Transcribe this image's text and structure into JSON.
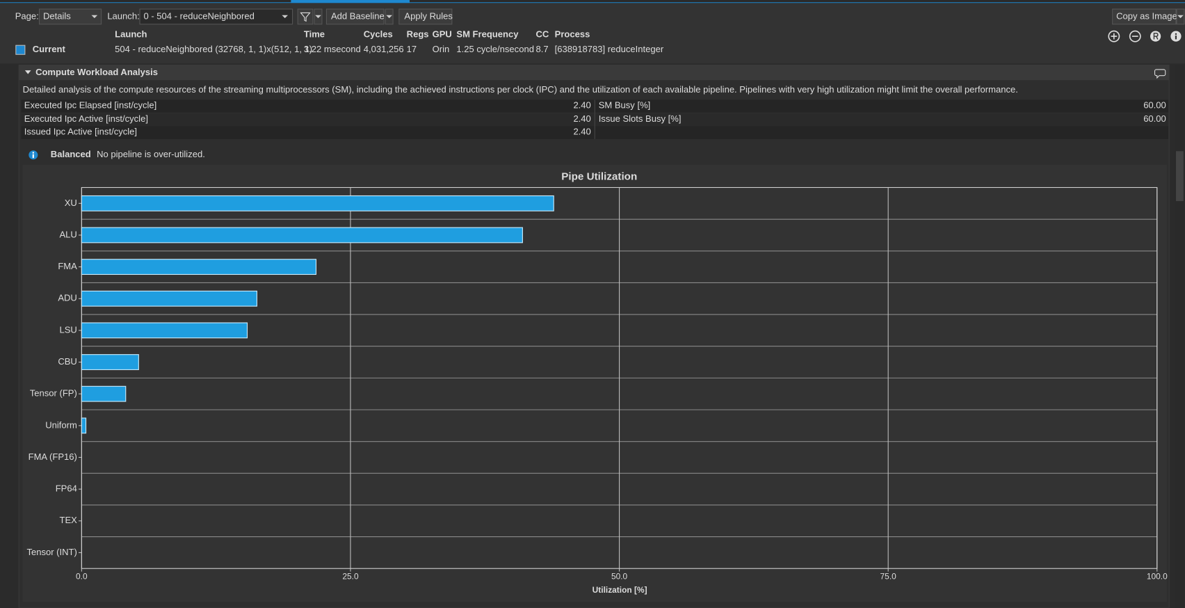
{
  "toolbar": {
    "page_label": "Page:",
    "page_value": "Details",
    "launch_label": "Launch:",
    "launch_value": "0 -  504 - reduceNeighbored",
    "add_baseline": "Add Baseline",
    "apply_rules": "Apply Rules",
    "copy_as_image": "Copy as Image"
  },
  "summary": {
    "headers": [
      "Launch",
      "Time",
      "Cycles",
      "Regs",
      "GPU",
      "SM Frequency",
      "CC",
      "Process"
    ],
    "row_label": "Current",
    "row": [
      "504 - reduceNeighbored (32768, 1, 1)x(512, 1, 1)",
      "3.22 msecond",
      "4,031,256",
      "17",
      "Orin",
      "1.25 cycle/nsecond",
      "8.7",
      "[638918783] reduceInteger"
    ]
  },
  "section": {
    "title": "Compute Workload Analysis",
    "description": "Detailed analysis of the compute resources of the streaming multiprocessors (SM), including the achieved instructions per clock (IPC) and the utilization of each available pipeline. Pipelines with very high utilization might limit the overall performance.",
    "metrics_left": [
      {
        "name": "Executed Ipc Elapsed [inst/cycle]",
        "value": "2.40"
      },
      {
        "name": "Executed Ipc Active [inst/cycle]",
        "value": "2.40"
      },
      {
        "name": "Issued Ipc Active [inst/cycle]",
        "value": "2.40"
      }
    ],
    "metrics_right": [
      {
        "name": "SM Busy [%]",
        "value": "60.00"
      },
      {
        "name": "Issue Slots Busy [%]",
        "value": "60.00"
      }
    ],
    "info": {
      "title": "Balanced",
      "text": "No pipeline is over-utilized."
    }
  },
  "chart_data": {
    "type": "hbar",
    "title": "Pipe Utilization",
    "x_label": "Utilization [%]",
    "categories": [
      "XU",
      "ALU",
      "FMA",
      "ADU",
      "LSU",
      "CBU",
      "Tensor (FP)",
      "Uniform",
      "FMA (FP16)",
      "FP64",
      "TEX",
      "Tensor (INT)"
    ],
    "values": [
      43.9,
      41.0,
      21.8,
      16.3,
      15.4,
      5.3,
      4.1,
      0.4,
      0,
      0,
      0,
      0
    ],
    "color": "#1f9ee0",
    "xlim": [
      0,
      100
    ],
    "xticks": [
      {
        "value": 0,
        "label": "0.0"
      },
      {
        "value": 25,
        "label": "25.0"
      },
      {
        "value": 50,
        "label": "50.0"
      },
      {
        "value": 75,
        "label": "75.0"
      },
      {
        "value": 100,
        "label": "100.0"
      }
    ],
    "grid": true
  }
}
